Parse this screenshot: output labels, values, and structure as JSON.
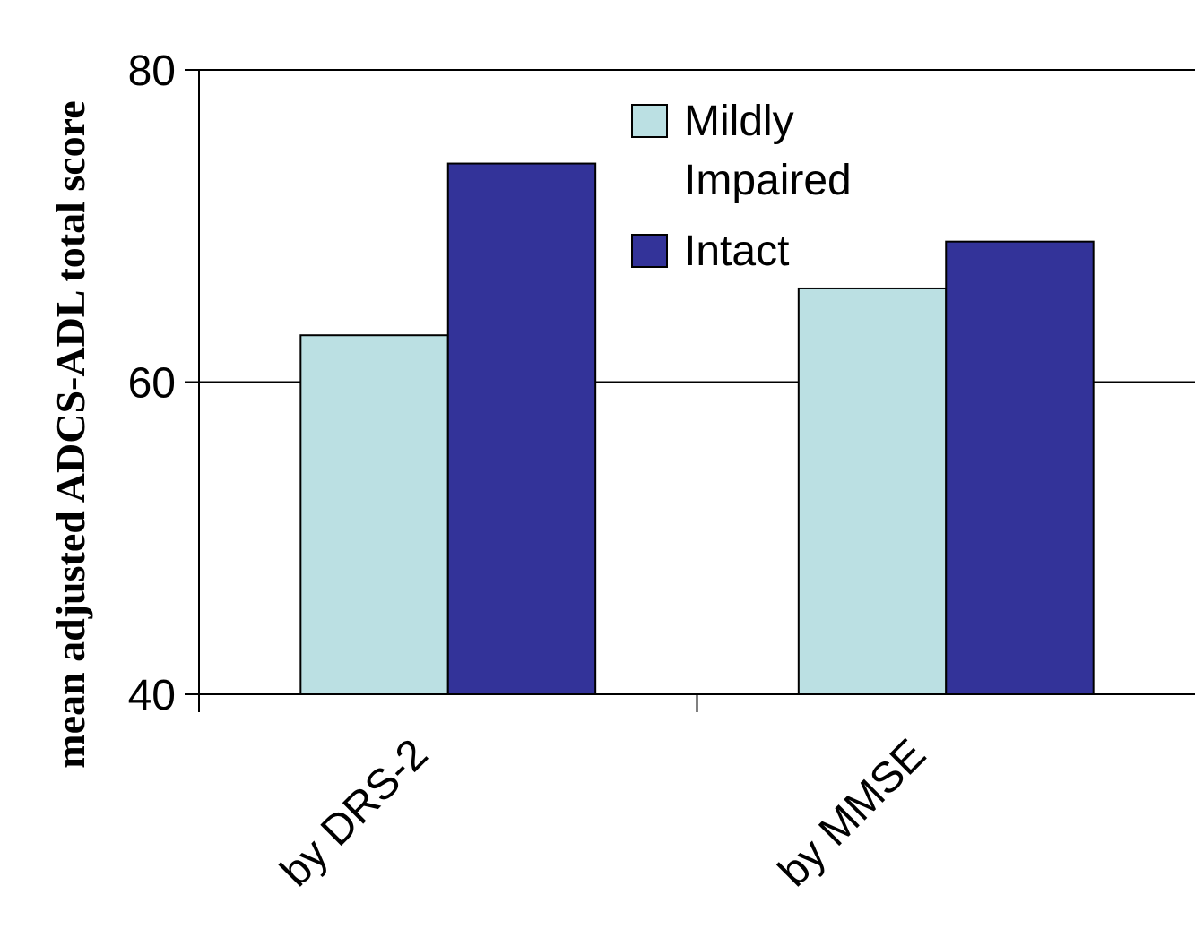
{
  "chart_data": {
    "type": "bar",
    "title": "",
    "xlabel": "",
    "ylabel": "mean adjusted ADCS-ADL total score",
    "categories": [
      "by DRS-2",
      "by MMSE"
    ],
    "series": [
      {
        "name": "Mildly Impaired",
        "name_lines": [
          "Mildly",
          "Impaired"
        ],
        "color": "#BBE0E3",
        "values": [
          63,
          66
        ]
      },
      {
        "name": "Intact",
        "name_lines": [
          "Intact"
        ],
        "color": "#333399",
        "values": [
          74,
          69
        ]
      }
    ],
    "ylim": [
      40,
      80
    ],
    "yticks": [
      40,
      60,
      80
    ],
    "ytick_labels": [
      "40",
      "60",
      "80"
    ],
    "grid": true,
    "legend_position": "top-center"
  }
}
